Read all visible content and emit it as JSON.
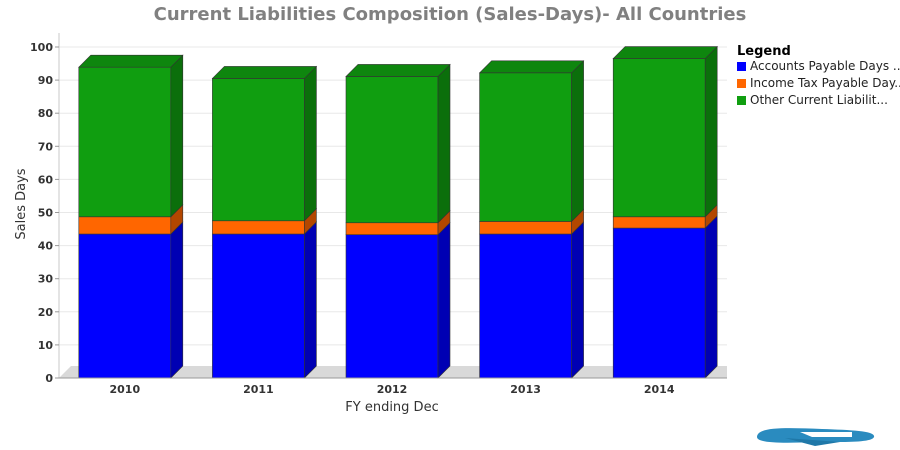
{
  "chart_data": {
    "type": "bar",
    "stacked": true,
    "title": "Current Liabilities Composition (Sales-Days)- All Countries",
    "xlabel": "FY ending Dec",
    "ylabel": "Sales Days",
    "ylim": [
      0,
      100
    ],
    "yticks": [
      0,
      10,
      20,
      30,
      40,
      50,
      60,
      70,
      80,
      90,
      100
    ],
    "categories": [
      "2010",
      "2011",
      "2012",
      "2013",
      "2014"
    ],
    "series": [
      {
        "name": "Accounts Payable Days ...",
        "color": "#0000ff",
        "values": [
          43.5,
          43.5,
          43.3,
          43.5,
          45.3
        ]
      },
      {
        "name": "Income Tax Payable Day...",
        "color": "#ff6600",
        "values": [
          5.2,
          4.0,
          3.6,
          3.8,
          3.4
        ]
      },
      {
        "name": "Other Current Liabilit...",
        "color": "#109e10",
        "values": [
          45.2,
          43.0,
          44.2,
          44.9,
          47.8
        ]
      }
    ],
    "legend": {
      "title": "Legend",
      "position": "right"
    },
    "grid": true
  }
}
